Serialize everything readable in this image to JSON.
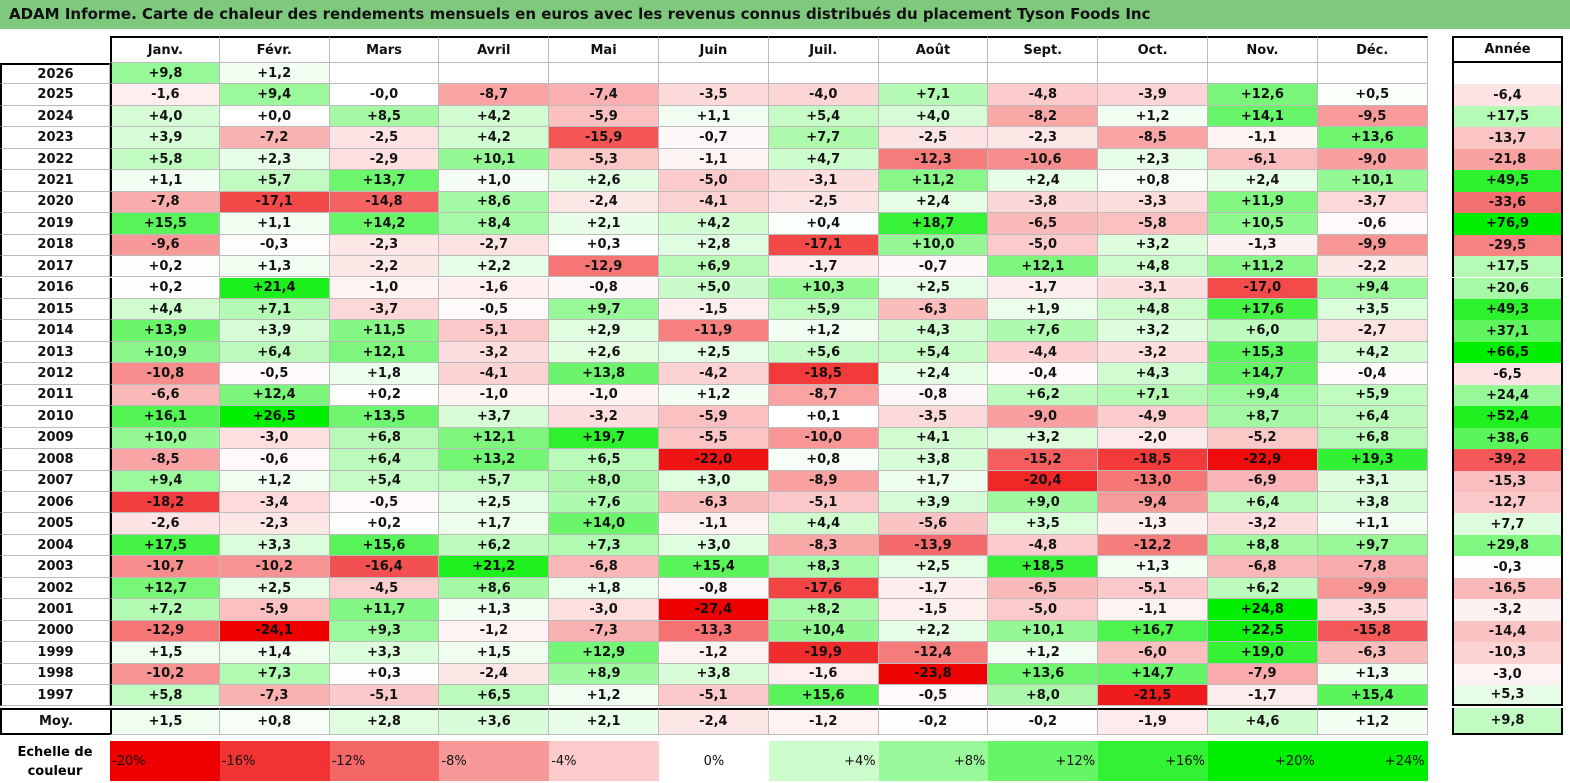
{
  "title": "ADAM Informe. Carte de chaleur des rendements mensuels en euros avec les revenus connus distribués du placement Tyson Foods Inc",
  "chart_data": {
    "type": "heatmap",
    "title": "ADAM Informe. Carte de chaleur des rendements mensuels en euros avec les revenus connus distribués du placement Tyson Foods Inc",
    "months": [
      "Janv.",
      "Févr.",
      "Mars",
      "Avril",
      "Mai",
      "Juin",
      "Juil.",
      "Août",
      "Sept.",
      "Oct.",
      "Nov.",
      "Déc."
    ],
    "year_header": "Année",
    "rows": [
      {
        "year": "2026",
        "values": [
          "+9,8",
          "+1,2",
          "",
          "",
          "",
          "",
          "",
          "",
          "",
          "",
          "",
          ""
        ],
        "annual": ""
      },
      {
        "year": "2025",
        "values": [
          "-1,6",
          "+9,4",
          "-0,0",
          "-8,7",
          "-7,4",
          "-3,5",
          "-4,0",
          "+7,1",
          "-4,8",
          "-3,9",
          "+12,6",
          "+0,5"
        ],
        "annual": "-6,4"
      },
      {
        "year": "2024",
        "values": [
          "+4,0",
          "+0,0",
          "+8,5",
          "+4,2",
          "-5,9",
          "+1,1",
          "+5,4",
          "+4,0",
          "-8,2",
          "+1,2",
          "+14,1",
          "-9,5"
        ],
        "annual": "+17,5"
      },
      {
        "year": "2023",
        "values": [
          "+3,9",
          "-7,2",
          "-2,5",
          "+4,2",
          "-15,9",
          "-0,7",
          "+7,7",
          "-2,5",
          "-2,3",
          "-8,5",
          "-1,1",
          "+13,6"
        ],
        "annual": "-13,7"
      },
      {
        "year": "2022",
        "values": [
          "+5,8",
          "+2,3",
          "-2,9",
          "+10,1",
          "-5,3",
          "-1,1",
          "+4,7",
          "-12,3",
          "-10,6",
          "+2,3",
          "-6,1",
          "-9,0"
        ],
        "annual": "-21,8"
      },
      {
        "year": "2021",
        "values": [
          "+1,1",
          "+5,7",
          "+13,7",
          "+1,0",
          "+2,6",
          "-5,0",
          "-3,1",
          "+11,2",
          "+2,4",
          "+0,8",
          "+2,4",
          "+10,1"
        ],
        "annual": "+49,5"
      },
      {
        "year": "2020",
        "values": [
          "-7,8",
          "-17,1",
          "-14,8",
          "+8,6",
          "-2,4",
          "-4,1",
          "-2,5",
          "+2,4",
          "-3,8",
          "-3,3",
          "+11,9",
          "-3,7"
        ],
        "annual": "-33,6"
      },
      {
        "year": "2019",
        "values": [
          "+15,5",
          "+1,1",
          "+14,2",
          "+8,4",
          "+2,1",
          "+4,2",
          "+0,4",
          "+18,7",
          "-6,5",
          "-5,8",
          "+10,5",
          "-0,6"
        ],
        "annual": "+76,9"
      },
      {
        "year": "2018",
        "values": [
          "-9,6",
          "-0,3",
          "-2,3",
          "-2,7",
          "+0,3",
          "+2,8",
          "-17,1",
          "+10,0",
          "-5,0",
          "+3,2",
          "-1,3",
          "-9,9"
        ],
        "annual": "-29,5"
      },
      {
        "year": "2017",
        "values": [
          "+0,2",
          "+1,3",
          "-2,2",
          "+2,2",
          "-12,9",
          "+6,9",
          "-1,7",
          "-0,7",
          "+12,1",
          "+4,8",
          "+11,2",
          "-2,2"
        ],
        "annual": "+17,5"
      },
      {
        "year": "2016",
        "values": [
          "+0,2",
          "+21,4",
          "-1,0",
          "-1,6",
          "-0,8",
          "+5,0",
          "+10,3",
          "+2,5",
          "-1,7",
          "-3,1",
          "-17,0",
          "+9,4"
        ],
        "annual": "+20,6"
      },
      {
        "year": "2015",
        "values": [
          "+4,4",
          "+7,1",
          "-3,7",
          "-0,5",
          "+9,7",
          "-1,5",
          "+5,9",
          "-6,3",
          "+1,9",
          "+4,8",
          "+17,6",
          "+3,5"
        ],
        "annual": "+49,3"
      },
      {
        "year": "2014",
        "values": [
          "+13,9",
          "+3,9",
          "+11,5",
          "-5,1",
          "+2,9",
          "-11,9",
          "+1,2",
          "+4,3",
          "+7,6",
          "+3,2",
          "+6,0",
          "-2,7"
        ],
        "annual": "+37,1"
      },
      {
        "year": "2013",
        "values": [
          "+10,9",
          "+6,4",
          "+12,1",
          "-3,2",
          "+2,6",
          "+2,5",
          "+5,6",
          "+5,4",
          "-4,4",
          "-3,2",
          "+15,3",
          "+4,2"
        ],
        "annual": "+66,5"
      },
      {
        "year": "2012",
        "values": [
          "-10,8",
          "-0,5",
          "+1,8",
          "-4,1",
          "+13,8",
          "-4,2",
          "-18,5",
          "+2,4",
          "-0,4",
          "+4,3",
          "+14,7",
          "-0,4"
        ],
        "annual": "-6,5"
      },
      {
        "year": "2011",
        "values": [
          "-6,6",
          "+12,4",
          "+0,2",
          "-1,0",
          "-1,0",
          "+1,2",
          "-8,7",
          "-0,8",
          "+6,2",
          "+7,1",
          "+9,4",
          "+5,9"
        ],
        "annual": "+24,4"
      },
      {
        "year": "2010",
        "values": [
          "+16,1",
          "+26,5",
          "+13,5",
          "+3,7",
          "-3,2",
          "-5,9",
          "+0,1",
          "-3,5",
          "-9,0",
          "-4,9",
          "+8,7",
          "+6,4"
        ],
        "annual": "+52,4"
      },
      {
        "year": "2009",
        "values": [
          "+10,0",
          "-3,0",
          "+6,8",
          "+12,1",
          "+19,7",
          "-5,5",
          "-10,0",
          "+4,1",
          "+3,2",
          "-2,0",
          "-5,2",
          "+6,8"
        ],
        "annual": "+38,6"
      },
      {
        "year": "2008",
        "values": [
          "-8,5",
          "-0,6",
          "+6,4",
          "+13,2",
          "+6,5",
          "-22,0",
          "+0,8",
          "+3,8",
          "-15,2",
          "-18,5",
          "-22,9",
          "+19,3"
        ],
        "annual": "-39,2"
      },
      {
        "year": "2007",
        "values": [
          "+9,4",
          "+1,2",
          "+5,4",
          "+5,7",
          "+8,0",
          "+3,0",
          "-8,9",
          "+1,7",
          "-20,4",
          "-13,0",
          "-6,9",
          "+3,1"
        ],
        "annual": "-15,3"
      },
      {
        "year": "2006",
        "values": [
          "-18,2",
          "-3,4",
          "-0,5",
          "+2,5",
          "+7,6",
          "-6,3",
          "-5,1",
          "+3,9",
          "+9,0",
          "-9,4",
          "+6,4",
          "+3,8"
        ],
        "annual": "-12,7"
      },
      {
        "year": "2005",
        "values": [
          "-2,6",
          "-2,3",
          "+0,2",
          "+1,7",
          "+14,0",
          "-1,1",
          "+4,4",
          "-5,6",
          "+3,5",
          "-1,3",
          "-3,2",
          "+1,1"
        ],
        "annual": "+7,7"
      },
      {
        "year": "2004",
        "values": [
          "+17,5",
          "+3,3",
          "+15,6",
          "+6,2",
          "+7,3",
          "+3,0",
          "-8,3",
          "-13,9",
          "-4,8",
          "-12,2",
          "+8,8",
          "+9,7"
        ],
        "annual": "+29,8"
      },
      {
        "year": "2003",
        "values": [
          "-10,7",
          "-10,2",
          "-16,4",
          "+21,2",
          "-6,8",
          "+15,4",
          "+8,3",
          "+2,5",
          "+18,5",
          "+1,3",
          "-6,8",
          "-7,8"
        ],
        "annual": "-0,3"
      },
      {
        "year": "2002",
        "values": [
          "+12,7",
          "+2,5",
          "-4,5",
          "+8,6",
          "+1,8",
          "-0,8",
          "-17,6",
          "-1,7",
          "-6,5",
          "-5,1",
          "+6,2",
          "-9,9"
        ],
        "annual": "-16,5"
      },
      {
        "year": "2001",
        "values": [
          "+7,2",
          "-5,9",
          "+11,7",
          "+1,3",
          "-3,0",
          "-27,4",
          "+8,2",
          "-1,5",
          "-5,0",
          "-1,1",
          "+24,8",
          "-3,5"
        ],
        "annual": "-3,2"
      },
      {
        "year": "2000",
        "values": [
          "-12,9",
          "-24,1",
          "+9,3",
          "-1,2",
          "-7,3",
          "-13,3",
          "+10,4",
          "+2,2",
          "+10,1",
          "+16,7",
          "+22,5",
          "-15,8"
        ],
        "annual": "-14,4"
      },
      {
        "year": "1999",
        "values": [
          "+1,5",
          "+1,4",
          "+3,3",
          "+1,5",
          "+12,9",
          "-1,2",
          "-19,9",
          "-12,4",
          "+1,2",
          "-6,0",
          "+19,0",
          "-6,3"
        ],
        "annual": "-10,3"
      },
      {
        "year": "1998",
        "values": [
          "-10,2",
          "+7,3",
          "+0,3",
          "-2,4",
          "+8,9",
          "+3,8",
          "-1,6",
          "-23,8",
          "+13,6",
          "+14,7",
          "-7,9",
          "+1,3"
        ],
        "annual": "-3,0"
      },
      {
        "year": "1997",
        "values": [
          "+5,8",
          "-7,3",
          "-5,1",
          "+6,5",
          "+1,2",
          "-5,1",
          "+15,6",
          "-0,5",
          "+8,0",
          "-21,5",
          "-1,7",
          "+15,4"
        ],
        "annual": "+5,3"
      }
    ],
    "average": {
      "label": "Moy.",
      "values": [
        "+1,5",
        "+0,8",
        "+2,8",
        "+3,6",
        "+2,1",
        "-2,4",
        "-1,2",
        "-0,2",
        "-0,2",
        "-1,9",
        "+4,6",
        "+1,2"
      ],
      "annual": "+9,8"
    },
    "legend": {
      "label": "Echelle de couleur",
      "steps": [
        "-20%",
        "-16%",
        "-12%",
        "-8%",
        "-4%",
        "0%",
        "+4%",
        "+8%",
        "+12%",
        "+16%",
        "+20%",
        "+24%"
      ],
      "step_values": [
        -20,
        -16,
        -12,
        -8,
        -4,
        0,
        4,
        8,
        12,
        16,
        20,
        24
      ]
    }
  }
}
